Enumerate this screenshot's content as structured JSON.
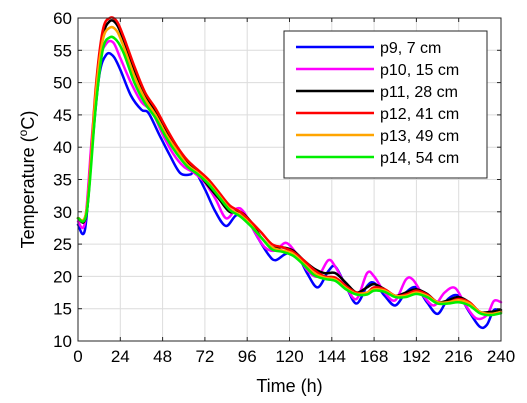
{
  "chart_data": {
    "type": "line",
    "xlabel": "Time (h)",
    "ylabel_main": "Temperature (",
    "ylabel_sup": "o",
    "ylabel_tail": "C)",
    "xlim": [
      0,
      240
    ],
    "ylim": [
      10,
      60
    ],
    "xticks": [
      0,
      24,
      48,
      72,
      96,
      120,
      144,
      168,
      192,
      216,
      240
    ],
    "yticks": [
      10,
      15,
      20,
      25,
      30,
      35,
      40,
      45,
      50,
      55,
      60
    ],
    "grid": true,
    "legend_position": "top-right",
    "series": [
      {
        "name": "p9, 7 cm",
        "color": "#0000ff",
        "points": [
          [
            0,
            28
          ],
          [
            4,
            27.3
          ],
          [
            8,
            40
          ],
          [
            12,
            51
          ],
          [
            16,
            54.3
          ],
          [
            20,
            54.1
          ],
          [
            24,
            52
          ],
          [
            30,
            48
          ],
          [
            36,
            45.8
          ],
          [
            40,
            45.3
          ],
          [
            46,
            42
          ],
          [
            52,
            38.8
          ],
          [
            58,
            36
          ],
          [
            64,
            35.8
          ],
          [
            66,
            36.5
          ],
          [
            72,
            33.5
          ],
          [
            78,
            30
          ],
          [
            84,
            27.8
          ],
          [
            90,
            29.5
          ],
          [
            96,
            28.8
          ],
          [
            102,
            26
          ],
          [
            108,
            23.4
          ],
          [
            112,
            22.5
          ],
          [
            118,
            23.5
          ],
          [
            124,
            23.5
          ],
          [
            130,
            20.5
          ],
          [
            136,
            18.3
          ],
          [
            142,
            20.8
          ],
          [
            146,
            21.5
          ],
          [
            152,
            18.5
          ],
          [
            158,
            15.8
          ],
          [
            164,
            18.5
          ],
          [
            168,
            19
          ],
          [
            174,
            17
          ],
          [
            180,
            15.5
          ],
          [
            186,
            17.5
          ],
          [
            192,
            18.3
          ],
          [
            198,
            16
          ],
          [
            204,
            14.2
          ],
          [
            210,
            16.5
          ],
          [
            216,
            17
          ],
          [
            222,
            14.5
          ],
          [
            228,
            12.2
          ],
          [
            232,
            12.5
          ],
          [
            236,
            14.8
          ],
          [
            240,
            14.5
          ]
        ]
      },
      {
        "name": "p10, 15 cm",
        "color": "#ff00ff",
        "points": [
          [
            0,
            28.5
          ],
          [
            4,
            28.5
          ],
          [
            8,
            42
          ],
          [
            12,
            53
          ],
          [
            16,
            56
          ],
          [
            20,
            56.2
          ],
          [
            24,
            53.8
          ],
          [
            30,
            50
          ],
          [
            36,
            47
          ],
          [
            42,
            45.5
          ],
          [
            48,
            42
          ],
          [
            54,
            39
          ],
          [
            60,
            37
          ],
          [
            66,
            36
          ],
          [
            72,
            34.5
          ],
          [
            78,
            32
          ],
          [
            84,
            29
          ],
          [
            90,
            30.5
          ],
          [
            94,
            30
          ],
          [
            100,
            27
          ],
          [
            106,
            24.5
          ],
          [
            112,
            24
          ],
          [
            118,
            25.2
          ],
          [
            124,
            23.5
          ],
          [
            130,
            21
          ],
          [
            136,
            20
          ],
          [
            142,
            22.5
          ],
          [
            146,
            21.5
          ],
          [
            152,
            18.5
          ],
          [
            158,
            16.5
          ],
          [
            164,
            20.5
          ],
          [
            168,
            20
          ],
          [
            174,
            17.5
          ],
          [
            180,
            16.3
          ],
          [
            186,
            19.5
          ],
          [
            190,
            19.5
          ],
          [
            196,
            17
          ],
          [
            202,
            15.5
          ],
          [
            208,
            17.5
          ],
          [
            214,
            18.2
          ],
          [
            220,
            15.5
          ],
          [
            226,
            13.5
          ],
          [
            232,
            14
          ],
          [
            236,
            16.2
          ],
          [
            240,
            16
          ]
        ]
      },
      {
        "name": "p11, 28 cm",
        "color": "#000000",
        "points": [
          [
            0,
            29
          ],
          [
            5,
            30
          ],
          [
            10,
            48
          ],
          [
            14,
            57
          ],
          [
            18,
            59.5
          ],
          [
            22,
            59
          ],
          [
            26,
            56.5
          ],
          [
            32,
            52
          ],
          [
            38,
            48
          ],
          [
            44,
            45.5
          ],
          [
            50,
            42.5
          ],
          [
            56,
            40
          ],
          [
            62,
            37.5
          ],
          [
            68,
            36
          ],
          [
            74,
            34
          ],
          [
            80,
            32
          ],
          [
            86,
            30
          ],
          [
            92,
            30
          ],
          [
            98,
            28.5
          ],
          [
            104,
            26
          ],
          [
            110,
            24.5
          ],
          [
            116,
            24.5
          ],
          [
            122,
            24
          ],
          [
            128,
            22.5
          ],
          [
            134,
            21.2
          ],
          [
            140,
            20.5
          ],
          [
            146,
            20.5
          ],
          [
            152,
            19
          ],
          [
            158,
            17.5
          ],
          [
            164,
            18.3
          ],
          [
            168,
            18.8
          ],
          [
            174,
            18
          ],
          [
            180,
            17
          ],
          [
            186,
            17.5
          ],
          [
            192,
            18
          ],
          [
            198,
            17.3
          ],
          [
            204,
            16
          ],
          [
            210,
            16.3
          ],
          [
            216,
            16.8
          ],
          [
            222,
            16
          ],
          [
            228,
            14.5
          ],
          [
            234,
            14.5
          ],
          [
            240,
            14.8
          ]
        ]
      },
      {
        "name": "p12, 41 cm",
        "color": "#ff0000",
        "points": [
          [
            0,
            29
          ],
          [
            5,
            30.5
          ],
          [
            10,
            49
          ],
          [
            14,
            58
          ],
          [
            18,
            60
          ],
          [
            22,
            59.5
          ],
          [
            26,
            57
          ],
          [
            32,
            52.5
          ],
          [
            38,
            48.5
          ],
          [
            44,
            46
          ],
          [
            50,
            43
          ],
          [
            56,
            40.2
          ],
          [
            62,
            38
          ],
          [
            68,
            36.5
          ],
          [
            74,
            35
          ],
          [
            80,
            33
          ],
          [
            86,
            31
          ],
          [
            92,
            30
          ],
          [
            98,
            28.5
          ],
          [
            104,
            26.8
          ],
          [
            110,
            25
          ],
          [
            116,
            24.5
          ],
          [
            122,
            23.8
          ],
          [
            128,
            22.5
          ],
          [
            134,
            21
          ],
          [
            140,
            20
          ],
          [
            146,
            19.8
          ],
          [
            152,
            18.5
          ],
          [
            158,
            17.5
          ],
          [
            164,
            17.5
          ],
          [
            168,
            18.3
          ],
          [
            174,
            18
          ],
          [
            180,
            17
          ],
          [
            186,
            17.2
          ],
          [
            192,
            17.8
          ],
          [
            198,
            17.2
          ],
          [
            204,
            16
          ],
          [
            210,
            16
          ],
          [
            216,
            16.5
          ],
          [
            222,
            16
          ],
          [
            228,
            14.5
          ],
          [
            234,
            14.2
          ],
          [
            240,
            14.5
          ]
        ]
      },
      {
        "name": "p13, 49 cm",
        "color": "#ffa500",
        "points": [
          [
            0,
            29
          ],
          [
            5,
            30.5
          ],
          [
            10,
            48
          ],
          [
            14,
            56.5
          ],
          [
            18,
            58.5
          ],
          [
            22,
            58
          ],
          [
            26,
            55.5
          ],
          [
            32,
            51
          ],
          [
            38,
            47.5
          ],
          [
            44,
            45
          ],
          [
            50,
            42
          ],
          [
            56,
            39.5
          ],
          [
            62,
            37.3
          ],
          [
            68,
            36
          ],
          [
            74,
            34.5
          ],
          [
            80,
            32.5
          ],
          [
            86,
            30.5
          ],
          [
            92,
            29.5
          ],
          [
            98,
            28
          ],
          [
            104,
            26
          ],
          [
            110,
            24.5
          ],
          [
            116,
            24
          ],
          [
            122,
            23.5
          ],
          [
            128,
            22
          ],
          [
            134,
            20.5
          ],
          [
            140,
            19.8
          ],
          [
            146,
            19.5
          ],
          [
            152,
            18.2
          ],
          [
            158,
            17.3
          ],
          [
            164,
            17.5
          ],
          [
            168,
            18
          ],
          [
            174,
            17.8
          ],
          [
            180,
            17
          ],
          [
            186,
            17
          ],
          [
            192,
            17.5
          ],
          [
            198,
            17
          ],
          [
            204,
            16
          ],
          [
            210,
            16
          ],
          [
            216,
            16.3
          ],
          [
            222,
            15.8
          ],
          [
            228,
            14.5
          ],
          [
            234,
            14.2
          ],
          [
            240,
            14.5
          ]
        ]
      },
      {
        "name": "p14, 54 cm",
        "color": "#00ee00",
        "points": [
          [
            0,
            29
          ],
          [
            5,
            30
          ],
          [
            10,
            46
          ],
          [
            14,
            55
          ],
          [
            18,
            57
          ],
          [
            22,
            56.5
          ],
          [
            26,
            54.5
          ],
          [
            32,
            50
          ],
          [
            38,
            46.8
          ],
          [
            44,
            44.5
          ],
          [
            50,
            41.5
          ],
          [
            56,
            39
          ],
          [
            62,
            37
          ],
          [
            68,
            35.8
          ],
          [
            74,
            34.3
          ],
          [
            80,
            32.3
          ],
          [
            86,
            30.3
          ],
          [
            92,
            29.3
          ],
          [
            98,
            27.8
          ],
          [
            104,
            26
          ],
          [
            110,
            24.2
          ],
          [
            116,
            23.8
          ],
          [
            122,
            23.2
          ],
          [
            128,
            21.8
          ],
          [
            134,
            20.2
          ],
          [
            140,
            19.6
          ],
          [
            146,
            19.3
          ],
          [
            152,
            18
          ],
          [
            158,
            17.2
          ],
          [
            164,
            17.2
          ],
          [
            168,
            17.8
          ],
          [
            174,
            17.6
          ],
          [
            180,
            16.8
          ],
          [
            186,
            16.8
          ],
          [
            192,
            17.3
          ],
          [
            198,
            16.8
          ],
          [
            204,
            15.8
          ],
          [
            210,
            15.8
          ],
          [
            216,
            16
          ],
          [
            222,
            15.5
          ],
          [
            228,
            14.3
          ],
          [
            234,
            14
          ],
          [
            240,
            14.3
          ]
        ]
      }
    ]
  }
}
